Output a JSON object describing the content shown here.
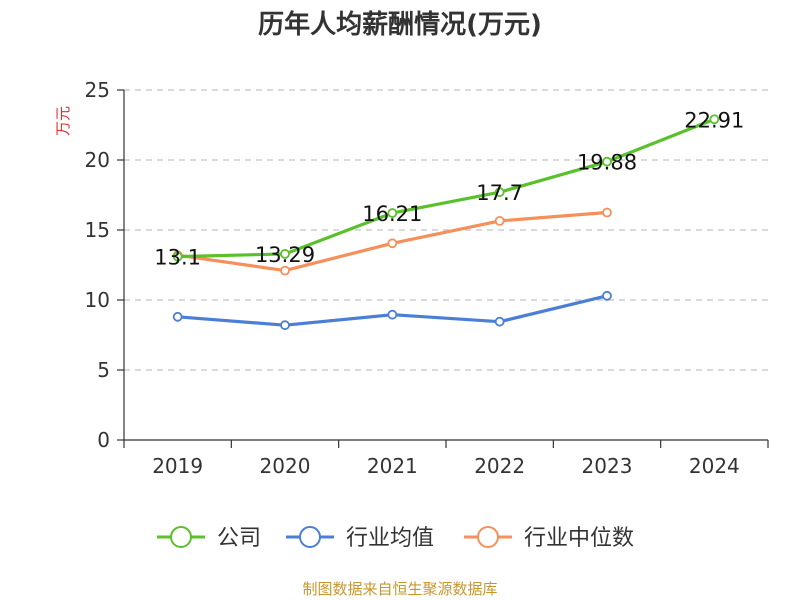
{
  "chart_data": {
    "type": "line",
    "title": "历年人均薪酬情况(万元)",
    "ylabel": "万元",
    "xlabel": "",
    "categories": [
      "2019",
      "2020",
      "2021",
      "2022",
      "2023",
      "2024"
    ],
    "ylim": [
      0,
      25
    ],
    "yticks": [
      0,
      5,
      10,
      15,
      20,
      25
    ],
    "grid": true,
    "legend_position": "bottom",
    "series": [
      {
        "name": "公司",
        "color": "#5ac12c",
        "values": [
          13.1,
          13.29,
          16.21,
          17.7,
          19.88,
          22.91
        ],
        "data_labels": [
          "13.1",
          "13.29",
          "16.21",
          "17.7",
          "19.88",
          "22.91"
        ]
      },
      {
        "name": "行业均值",
        "color": "#4b7fd6",
        "values": [
          8.8,
          8.2,
          8.95,
          8.45,
          10.3,
          null
        ]
      },
      {
        "name": "行业中位数",
        "color": "#f5905a",
        "values": [
          13.2,
          12.1,
          14.05,
          15.65,
          16.25,
          null
        ]
      }
    ]
  },
  "source_text": "制图数据来自恒生聚源数据库"
}
